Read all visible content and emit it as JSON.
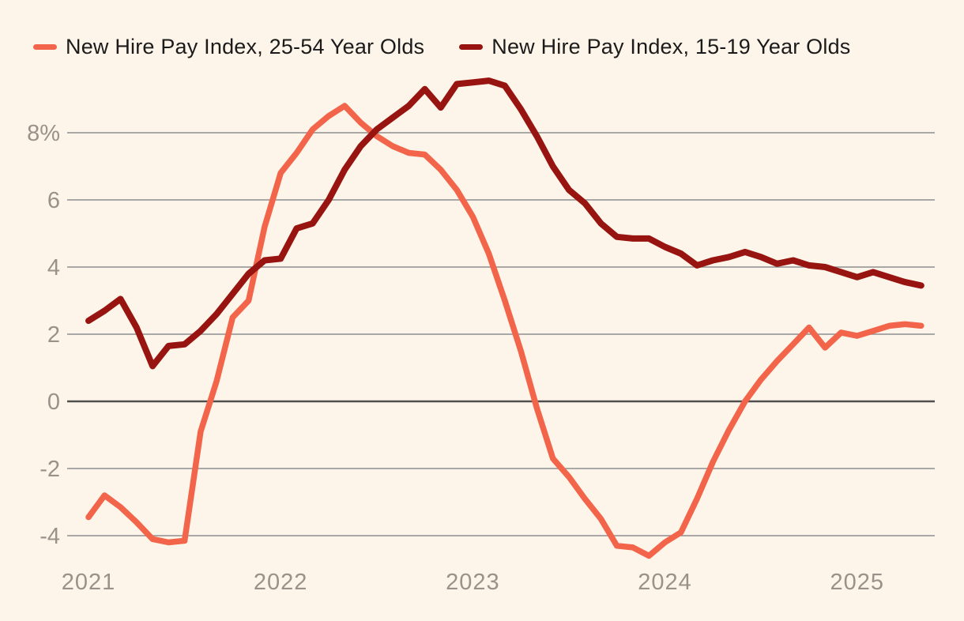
{
  "legend": {
    "items": [
      {
        "label": "New Hire Pay Index, 25-54 Year Olds",
        "color": "#f2654a"
      },
      {
        "label": "New Hire Pay Index, 15-19 Year Olds",
        "color": "#971410"
      }
    ]
  },
  "chart_data": {
    "type": "line",
    "title": "",
    "xlabel": "",
    "ylabel": "",
    "x_interval": "monthly",
    "x_start": "2021-01",
    "x_end": "2025-05",
    "x_tick_labels": [
      "2021",
      "2022",
      "2023",
      "2024",
      "2025"
    ],
    "y_tick_labels": [
      "8%",
      "6",
      "4",
      "2",
      "0",
      "-2",
      "-4"
    ],
    "y_tick_values": [
      8,
      6,
      4,
      2,
      0,
      -2,
      -4
    ],
    "ylim": [
      -5.4,
      10.0
    ],
    "grid": "horizontal-only",
    "zero_line_emphasized": true,
    "legend_position": "top-left",
    "series": [
      {
        "name": "New Hire Pay Index, 25-54 Year Olds",
        "color": "#f2654a",
        "values": [
          -3.45,
          -2.8,
          -3.15,
          -3.6,
          -4.1,
          -4.2,
          -4.15,
          -0.9,
          0.6,
          2.5,
          3.0,
          5.2,
          6.8,
          7.4,
          8.1,
          8.5,
          8.8,
          8.3,
          7.9,
          7.6,
          7.4,
          7.35,
          6.9,
          6.3,
          5.5,
          4.4,
          3.0,
          1.5,
          -0.2,
          -1.7,
          -2.25,
          -2.9,
          -3.5,
          -4.3,
          -4.35,
          -4.6,
          -4.2,
          -3.9,
          -2.9,
          -1.8,
          -0.85,
          0.0,
          0.65,
          1.2,
          1.7,
          2.2,
          1.6,
          2.05,
          1.95,
          2.1,
          2.25,
          2.3,
          2.25
        ]
      },
      {
        "name": "New Hire Pay Index, 15-19 Year Olds",
        "color": "#971410",
        "values": [
          2.4,
          2.7,
          3.05,
          2.2,
          1.05,
          1.65,
          1.7,
          2.1,
          2.6,
          3.2,
          3.8,
          4.2,
          4.25,
          5.15,
          5.3,
          6.0,
          6.9,
          7.6,
          8.1,
          8.45,
          8.8,
          9.3,
          8.75,
          9.45,
          9.5,
          9.55,
          9.4,
          8.7,
          7.9,
          7.0,
          6.3,
          5.9,
          5.3,
          4.9,
          4.85,
          4.85,
          4.6,
          4.4,
          4.05,
          4.2,
          4.3,
          4.45,
          4.3,
          4.1,
          4.2,
          4.05,
          4.0,
          3.85,
          3.7,
          3.85,
          3.7,
          3.55,
          3.45
        ]
      }
    ]
  },
  "colors": {
    "background": "#fdf5e9",
    "gridline": "#8f8f8f",
    "zero_line": "#4f4f4f",
    "axis_text": "#98928a"
  }
}
